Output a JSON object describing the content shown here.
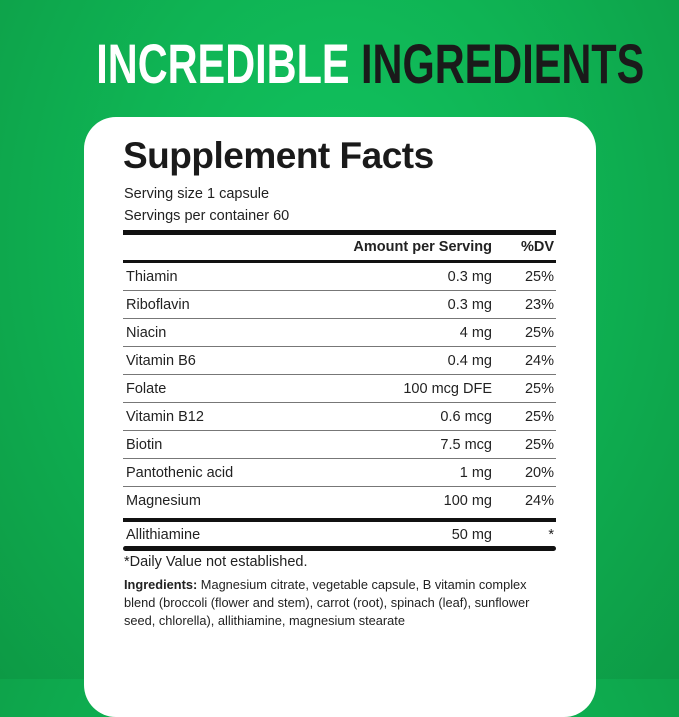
{
  "headline": {
    "part1": "INCREDIBLE",
    "part2": "INGREDIENTS"
  },
  "facts": {
    "title": "Supplement Facts",
    "serving_size": "Serving size 1 capsule",
    "servings_per_container": "Servings per container 60",
    "columns": {
      "amount": "Amount per Serving",
      "dv": "%DV"
    },
    "rows": [
      {
        "name": "Thiamin",
        "amount": "0.3 mg",
        "dv": "25%"
      },
      {
        "name": "Riboflavin",
        "amount": "0.3 mg",
        "dv": "23%"
      },
      {
        "name": "Niacin",
        "amount": "4 mg",
        "dv": "25%"
      },
      {
        "name": "Vitamin B6",
        "amount": "0.4 mg",
        "dv": "24%"
      },
      {
        "name": "Folate",
        "amount": "100 mcg DFE",
        "dv": "25%"
      },
      {
        "name": "Vitamin B12",
        "amount": "0.6 mcg",
        "dv": "25%"
      },
      {
        "name": "Biotin",
        "amount": "7.5 mcg",
        "dv": "25%"
      },
      {
        "name": "Pantothenic acid",
        "amount": "1 mg",
        "dv": "20%"
      },
      {
        "name": "Magnesium",
        "amount": "100 mg",
        "dv": "24%"
      }
    ],
    "special_row": {
      "name": "Allithiamine",
      "amount": "50 mg",
      "dv": "*"
    },
    "footnote": "*Daily Value not established.",
    "ingredients_label": "Ingredients:",
    "ingredients": " Magnesium citrate, vegetable capsule, B vitamin complex blend (broccoli (flower and stem), carrot (root), spinach (leaf), sunflower seed, chlorella), allithiamine, magnesium stearate"
  }
}
